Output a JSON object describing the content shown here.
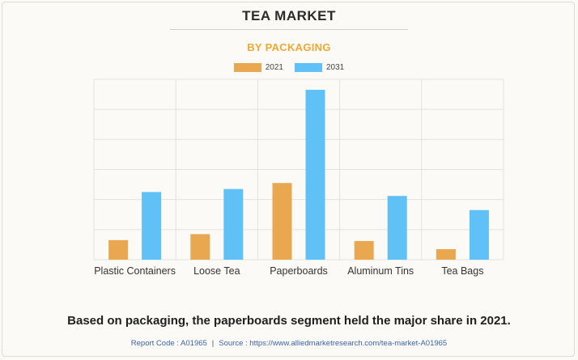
{
  "title": "TEA MARKET",
  "subtitle": "BY PACKAGING",
  "colors": {
    "series_2021": "#e9a850",
    "series_2031": "#60c1f7",
    "grid": "#e2e2e2"
  },
  "chart_data": {
    "type": "bar",
    "categories": [
      "Plastic Containers",
      "Loose Tea",
      "Paperboards",
      "Aluminum Tins",
      "Tea Bags"
    ],
    "series": [
      {
        "name": "2021",
        "values": [
          0.65,
          0.85,
          2.55,
          0.62,
          0.35
        ]
      },
      {
        "name": "2031",
        "values": [
          2.25,
          2.35,
          5.65,
          2.12,
          1.65
        ]
      }
    ],
    "ylim": [
      0,
      6
    ],
    "grid": true,
    "legend": "top-center",
    "xlabel": "",
    "ylabel": ""
  },
  "footer": {
    "caption": "Based on packaging, the paperboards segment held the major share in 2021.",
    "report_code": "Report Code : A01965",
    "separator": "|",
    "source": "Source : https://www.alliedmarketresearch.com/tea-market-A01965"
  }
}
